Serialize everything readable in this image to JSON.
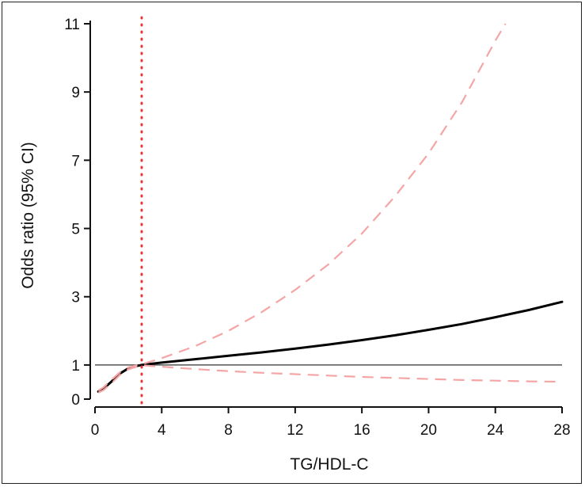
{
  "chart_data": {
    "type": "line",
    "title": "",
    "xlabel": "TG/HDL-C",
    "ylabel": "Odds ratio (95% CI)",
    "xlim": [
      0,
      28
    ],
    "ylim": [
      0,
      11
    ],
    "x_ticks": [
      0,
      4,
      8,
      12,
      16,
      20,
      24,
      28
    ],
    "y_ticks": [
      0,
      1,
      3,
      5,
      7,
      9,
      11
    ],
    "grid": false,
    "legend": "none",
    "reference_line": {
      "y": 1,
      "color": "#555555"
    },
    "vertical_line": {
      "x": 2.8,
      "style": "dotted",
      "color": "#e53935"
    },
    "series": [
      {
        "role": "estimate",
        "style": "solid",
        "color": "#000000",
        "x": [
          0.2,
          0.5,
          1.0,
          1.5,
          2.0,
          2.5,
          2.8,
          4,
          6,
          8,
          10,
          12,
          14,
          16,
          18,
          20,
          22,
          24,
          26,
          28
        ],
        "y": [
          0.22,
          0.3,
          0.52,
          0.75,
          0.9,
          0.97,
          1.0,
          1.07,
          1.17,
          1.27,
          1.37,
          1.48,
          1.6,
          1.73,
          1.87,
          2.03,
          2.2,
          2.4,
          2.61,
          2.85
        ]
      },
      {
        "role": "upper_ci",
        "style": "dashed",
        "color": "#f4a6a6",
        "x": [
          0.2,
          0.5,
          1.0,
          1.5,
          2.0,
          2.5,
          2.8,
          4,
          6,
          8,
          10,
          12,
          14,
          16,
          18,
          20,
          22,
          24,
          24.6
        ],
        "y": [
          0.25,
          0.34,
          0.57,
          0.79,
          0.93,
          0.99,
          1.02,
          1.2,
          1.55,
          2.0,
          2.55,
          3.2,
          3.95,
          4.85,
          5.95,
          7.2,
          8.7,
          10.5,
          11.0
        ]
      },
      {
        "role": "lower_ci",
        "style": "dashed",
        "color": "#f4a6a6",
        "x": [
          0.2,
          0.5,
          1.0,
          1.5,
          2.0,
          2.5,
          2.8,
          4,
          6,
          8,
          10,
          12,
          14,
          16,
          18,
          20,
          22,
          24,
          26,
          27.6
        ],
        "y": [
          0.19,
          0.26,
          0.47,
          0.71,
          0.87,
          0.95,
          0.99,
          0.95,
          0.88,
          0.82,
          0.77,
          0.73,
          0.69,
          0.65,
          0.62,
          0.59,
          0.56,
          0.54,
          0.52,
          0.51
        ]
      }
    ]
  }
}
